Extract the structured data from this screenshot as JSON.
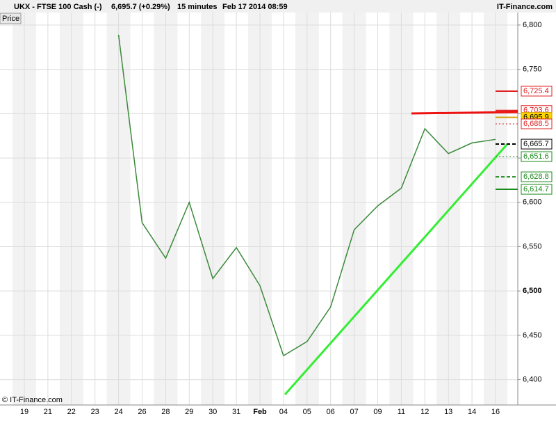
{
  "header": {
    "symbol": "UKX - FTSE 100 Cash (-)",
    "quote": "6,695.7 (+0.29%)",
    "interval": "15 minutes",
    "datetime": "Feb 17 2014 08:59",
    "brand": "IT-Finance.com"
  },
  "footer": "© IT-Finance.com",
  "chart_data": {
    "type": "line",
    "pane_label": "Price",
    "categories": [
      "19",
      "21",
      "22",
      "23",
      "24",
      "26",
      "28",
      "29",
      "30",
      "31",
      "Feb",
      "04",
      "05",
      "06",
      "07",
      "09",
      "11",
      "12",
      "13",
      "14",
      "16"
    ],
    "series": [
      {
        "name": "Price",
        "color": "#3a8a3a",
        "values": [
          null,
          null,
          null,
          null,
          6789,
          6577,
          6537,
          6600,
          6514,
          6549,
          6506,
          6427,
          6443,
          6482,
          6569,
          6596,
          6616,
          6683,
          6655,
          6667,
          6671
        ]
      }
    ],
    "ylim": [
      6371.4,
      6814.1
    ],
    "yticks": [
      {
        "value": 6800,
        "label": "6,800"
      },
      {
        "value": 6750,
        "label": "6,750"
      },
      {
        "value": 6700,
        "label": "6,700"
      },
      {
        "value": 6650,
        "label": "6,650"
      },
      {
        "value": 6600,
        "label": "6,600"
      },
      {
        "value": 6550,
        "label": "6,550"
      },
      {
        "value": 6500,
        "label": "6,500"
      },
      {
        "value": 6450,
        "label": "6,450"
      },
      {
        "value": 6400,
        "label": "6,400"
      }
    ],
    "levels": {
      "values": [
        6725.4,
        6703.6,
        6695.9,
        6688.5,
        6665.7,
        6651.6,
        6628.8,
        6614.7
      ],
      "value_labels": [
        "6,725.4",
        "6,703.6",
        "6,695.9",
        "6,688.5",
        "6,665.7",
        "6,651.6",
        "6,628.8",
        "6,614.7"
      ],
      "colors": [
        "#e02020",
        "#e02020",
        "#d4a000",
        "#e02020",
        "#000000",
        "#1a8a1a",
        "#1a8a1a",
        "#1a8a1a"
      ],
      "styles": [
        "solid",
        "solid",
        "solid",
        "dotted",
        "dashed",
        "dotted",
        "dashed",
        "solid"
      ]
    },
    "grid": true
  }
}
